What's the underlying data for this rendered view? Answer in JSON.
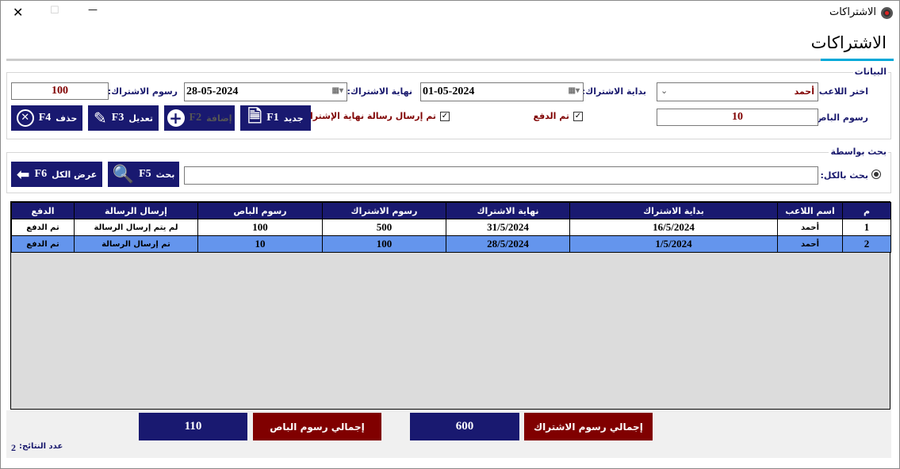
{
  "window": {
    "title": "الاشتراكات",
    "icon": "football-icon",
    "controls": {
      "close": "✕",
      "maximize": "☐",
      "minimize": "—"
    }
  },
  "header": {
    "title": "الاشتراكات",
    "accent": "#00a8d8"
  },
  "data_group": {
    "title": "البيانات",
    "player_label": "اختر اللاعب:",
    "player_value": "أحمد",
    "start_label": "بداية الاشتراك:",
    "start_value": "01-05-2024",
    "end_label": "نهاية الاشتراك:",
    "end_value": "28-05-2024",
    "sub_fee_label": "رسوم الاشتراك:",
    "sub_fee_value": "100",
    "bus_fee_label": "رسوم الباص:",
    "bus_fee_value": "10",
    "paid_label": "تم الدفع",
    "paid_checked": true,
    "msg_label": "تم إرسال رسالة نهاية الإشتراك",
    "msg_checked": true,
    "buttons": {
      "new": "جديد",
      "new_key": "F1",
      "add": "إضافة",
      "add_key": "F2",
      "edit": "تعديل",
      "edit_key": "F3",
      "delete": "حذف",
      "delete_key": "F4"
    }
  },
  "search_group": {
    "title": "بحث بواسطة",
    "radio_label": "بحث بالكل:",
    "search_value": "",
    "search_btn": "بحث",
    "search_key": "F5",
    "show_all_btn": "عرض الكل",
    "show_all_key": "F6"
  },
  "table": {
    "columns": [
      "م",
      "اسم اللاعب",
      "بداية الاشتراك",
      "نهاية الاشتراك",
      "رسوم الاشتراك",
      "رسوم الباص",
      "إرسال الرسالة",
      "الدفع"
    ],
    "rows": [
      [
        "1",
        "أحمد",
        "16/5/2024",
        "31/5/2024",
        "500",
        "100",
        "لم يتم إرسال الرسالة",
        "تم الدفع"
      ],
      [
        "2",
        "أحمد",
        "1/5/2024",
        "28/5/2024",
        "100",
        "10",
        "تم إرسال الرسالة",
        "تم الدفع"
      ]
    ],
    "selected_row": 2
  },
  "totals": {
    "sub_label": "إجمالي رسوم الاشتراك",
    "sub_value": "600",
    "bus_label": "إجمالي رسوم الباص",
    "bus_value": "110",
    "count_label": "عدد النتائج:",
    "count_value": "2"
  },
  "colors": {
    "navy": "#191970",
    "maroon": "#800000",
    "selected": "#6495ed"
  }
}
